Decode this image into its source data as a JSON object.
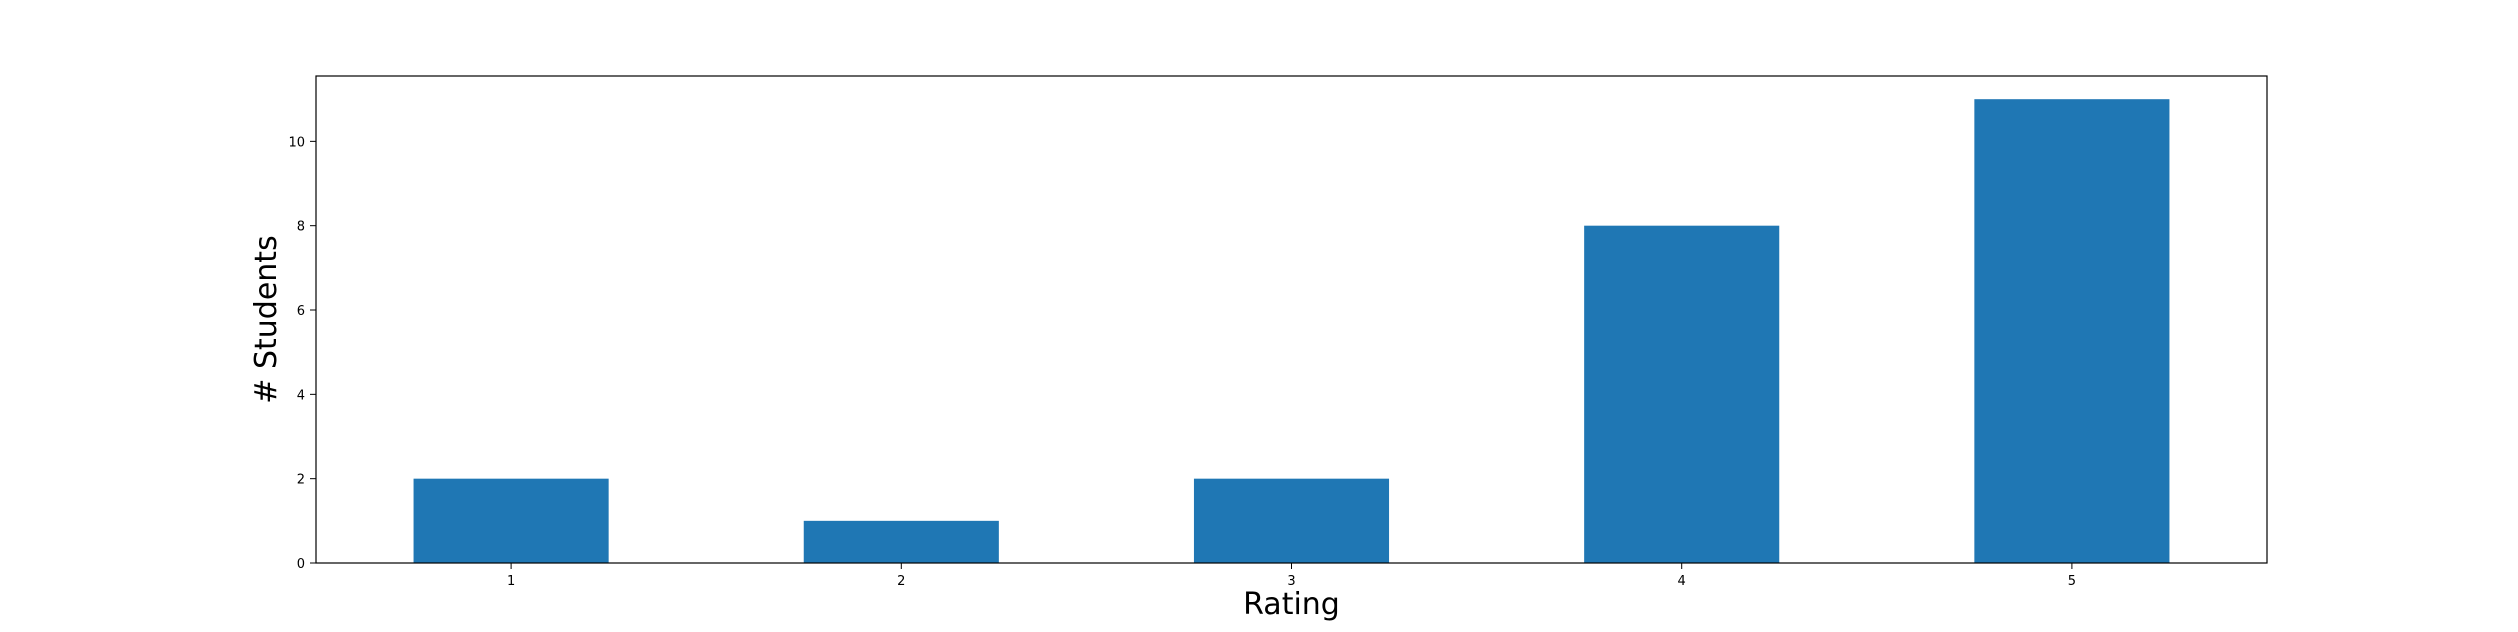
{
  "chart_data": {
    "type": "bar",
    "title": "",
    "xlabel": "Rating",
    "ylabel": "# Students",
    "categories": [
      "1",
      "2",
      "3",
      "4",
      "5"
    ],
    "values": [
      2,
      1,
      2,
      8,
      11
    ],
    "ylim": [
      0,
      11.55
    ],
    "yticks": [
      0,
      2,
      4,
      6,
      8,
      10
    ],
    "grid": false,
    "legend": "none",
    "colors": {
      "bar": "#1f77b4",
      "axes": "#000000",
      "background": "#ffffff"
    }
  }
}
